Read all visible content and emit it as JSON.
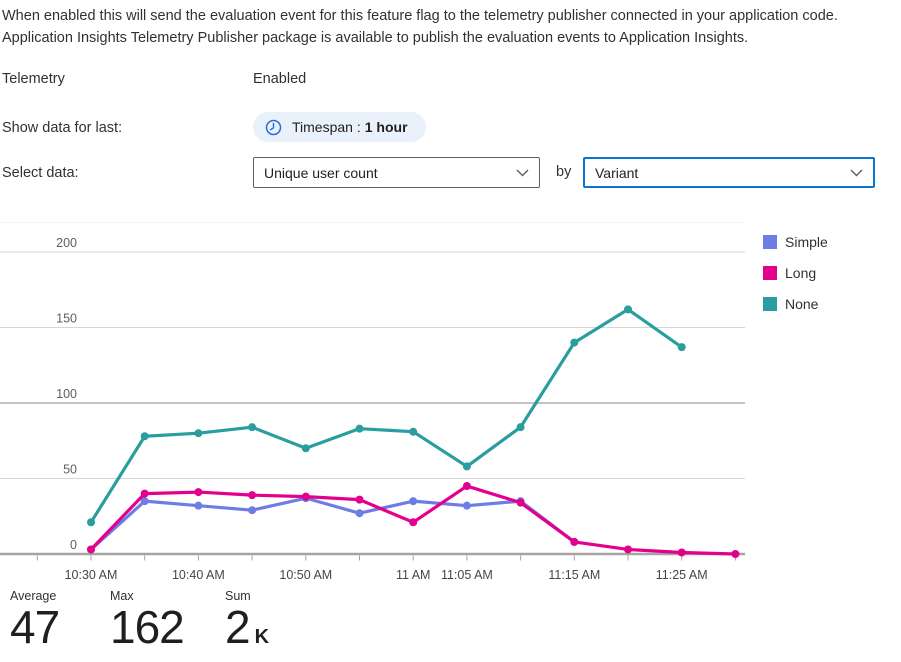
{
  "description": "When enabled this will send the evaluation event for this feature flag to the telemetry publisher connected in your application code. Application Insights Telemetry Publisher package is available to publish the evaluation events to Application Insights.",
  "telemetry": {
    "label": "Telemetry",
    "value": "Enabled"
  },
  "timespan": {
    "label": "Show data for last:",
    "prefix": "Timespan :",
    "value": "1 hour"
  },
  "select_data": {
    "label": "Select data:",
    "metric_value": "Unique user count",
    "by_label": "by",
    "dimension_value": "Variant"
  },
  "stats": [
    {
      "label": "Average",
      "value": "47",
      "suffix": ""
    },
    {
      "label": "Max",
      "value": "162",
      "suffix": ""
    },
    {
      "label": "Sum",
      "value": "2",
      "suffix": "K"
    }
  ],
  "chart_data": {
    "type": "line",
    "title": "Unique user count by Variant",
    "x_start": "10:30 AM",
    "x_step_minutes": 5,
    "x_labels": [
      {
        "text": "10:30 AM",
        "slot": 0
      },
      {
        "text": "10:40 AM",
        "slot": 2
      },
      {
        "text": "10:50 AM",
        "slot": 4
      },
      {
        "text": "11 AM",
        "slot": 6
      },
      {
        "text": "11:05 AM",
        "slot": 7
      },
      {
        "text": "11:15 AM",
        "slot": 9
      },
      {
        "text": "11:25 AM",
        "slot": 11
      }
    ],
    "y_ticks": [
      0,
      50,
      100,
      150,
      200
    ],
    "ylim": [
      0,
      220
    ],
    "grid": true,
    "legend_position": "right",
    "series": [
      {
        "name": "Simple",
        "color": "#6e7ce6",
        "values": [
          3,
          35,
          32,
          29,
          37,
          27,
          35,
          32,
          35,
          8
        ]
      },
      {
        "name": "Long",
        "color": "#e3008c",
        "values": [
          3,
          40,
          41,
          39,
          38,
          36,
          21,
          45,
          34,
          8,
          3,
          1,
          0
        ]
      },
      {
        "name": "None",
        "color": "#2a9d9f",
        "values": [
          21,
          78,
          80,
          84,
          70,
          83,
          81,
          58,
          84,
          140,
          162,
          137
        ]
      }
    ]
  }
}
